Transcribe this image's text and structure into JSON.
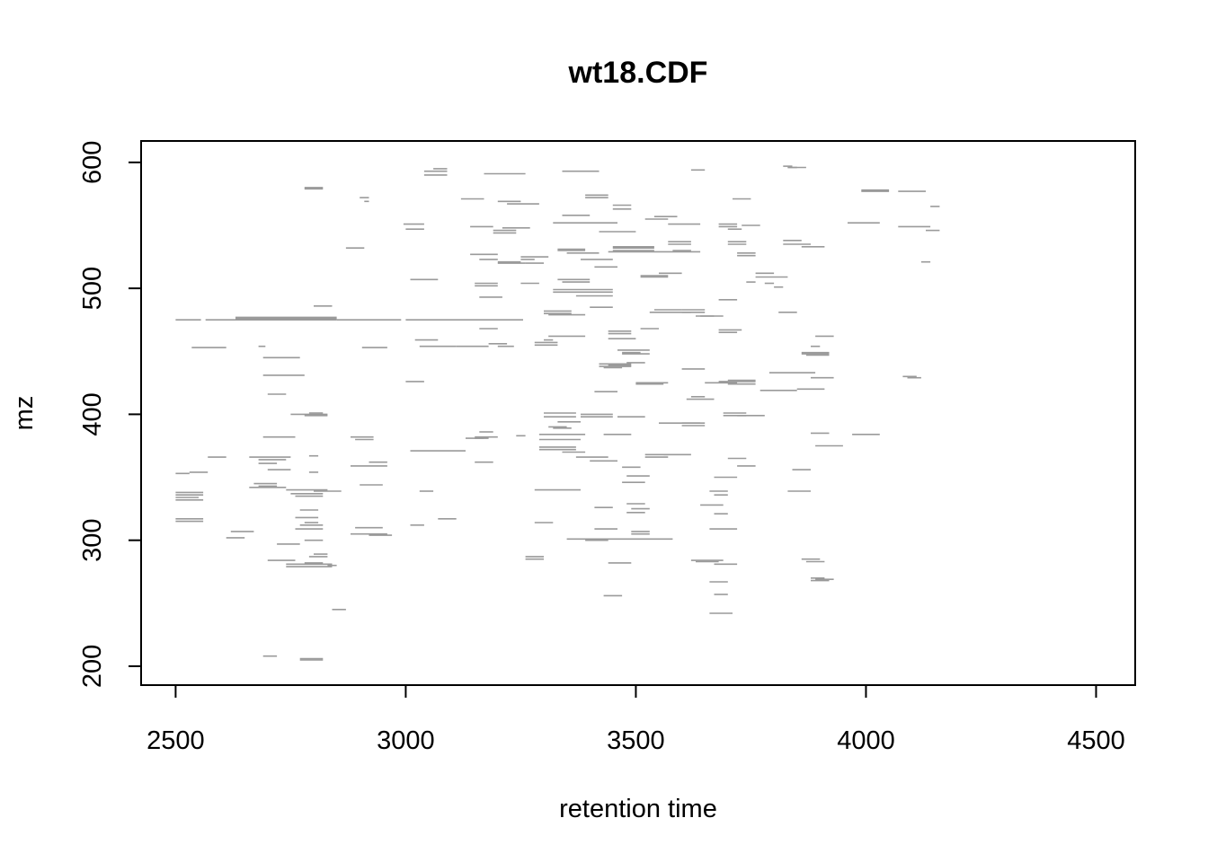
{
  "chart_data": {
    "type": "segments",
    "title": "wt18.CDF",
    "xlabel": "retention time",
    "ylabel": "mz",
    "xlim": [
      2425,
      4585
    ],
    "ylim": [
      185,
      617
    ],
    "xticks": [
      "2500",
      "3000",
      "3500",
      "4000",
      "4500"
    ],
    "yticks": [
      "200",
      "300",
      "400",
      "500",
      "600"
    ],
    "grid": false,
    "legend": "none",
    "segment_color": "#9a9a9a",
    "segments": [
      [
        2500,
        2555,
        475
      ],
      [
        2565,
        2850,
        475
      ],
      [
        2850,
        2990,
        475
      ],
      [
        3000,
        3255,
        475
      ],
      [
        2630,
        2850,
        476
      ],
      [
        2630,
        2850,
        477
      ],
      [
        2535,
        2610,
        453
      ],
      [
        2680,
        2695,
        454
      ],
      [
        2905,
        2960,
        453
      ],
      [
        3020,
        3070,
        459
      ],
      [
        3030,
        3110,
        454
      ],
      [
        3110,
        3180,
        454
      ],
      [
        3200,
        3235,
        454
      ],
      [
        3160,
        3200,
        468
      ],
      [
        2690,
        2770,
        445
      ],
      [
        2690,
        2780,
        431
      ],
      [
        2700,
        2740,
        416
      ],
      [
        3000,
        3040,
        426
      ],
      [
        2800,
        2840,
        486
      ],
      [
        3010,
        3070,
        507
      ],
      [
        2870,
        2910,
        532
      ],
      [
        3040,
        3090,
        593
      ],
      [
        3040,
        3090,
        590
      ],
      [
        3060,
        3090,
        595
      ],
      [
        2780,
        2820,
        580
      ],
      [
        2780,
        2820,
        579
      ],
      [
        2900,
        2920,
        572
      ],
      [
        2910,
        2920,
        569
      ],
      [
        3120,
        3170,
        571
      ],
      [
        3170,
        3260,
        591
      ],
      [
        2995,
        3040,
        551
      ],
      [
        3000,
        3040,
        547
      ],
      [
        3140,
        3190,
        549
      ],
      [
        3140,
        3200,
        527
      ],
      [
        3160,
        3200,
        523
      ],
      [
        3190,
        3240,
        546
      ],
      [
        3190,
        3240,
        544
      ],
      [
        3200,
        3250,
        569
      ],
      [
        3220,
        3290,
        567
      ],
      [
        3200,
        3260,
        520
      ],
      [
        3200,
        3250,
        521
      ],
      [
        3250,
        3310,
        525
      ],
      [
        3260,
        3300,
        520
      ],
      [
        3150,
        3200,
        502
      ],
      [
        3150,
        3200,
        504
      ],
      [
        3160,
        3210,
        493
      ],
      [
        3250,
        3290,
        504
      ],
      [
        3320,
        3460,
        552
      ],
      [
        3340,
        3400,
        558
      ],
      [
        3390,
        3440,
        574
      ],
      [
        3390,
        3440,
        572
      ],
      [
        3420,
        3500,
        545
      ],
      [
        3450,
        3490,
        566
      ],
      [
        3450,
        3490,
        563
      ],
      [
        3330,
        3390,
        531
      ],
      [
        3330,
        3390,
        530
      ],
      [
        3380,
        3450,
        523
      ],
      [
        3350,
        3420,
        528
      ],
      [
        3410,
        3460,
        517
      ],
      [
        3450,
        3540,
        533
      ],
      [
        3450,
        3540,
        532
      ],
      [
        3450,
        3540,
        530
      ],
      [
        3440,
        3640,
        529
      ],
      [
        3330,
        3400,
        507
      ],
      [
        3340,
        3400,
        505
      ],
      [
        3320,
        3450,
        497
      ],
      [
        3320,
        3450,
        499
      ],
      [
        3370,
        3450,
        494
      ],
      [
        3300,
        3360,
        482
      ],
      [
        3300,
        3360,
        480
      ],
      [
        3310,
        3390,
        479
      ],
      [
        3340,
        3420,
        593
      ],
      [
        3510,
        3570,
        509
      ],
      [
        3510,
        3570,
        510
      ],
      [
        3550,
        3600,
        512
      ],
      [
        3540,
        3590,
        557
      ],
      [
        3520,
        3570,
        555
      ],
      [
        3570,
        3640,
        551
      ],
      [
        3620,
        3650,
        594
      ],
      [
        3570,
        3620,
        537
      ],
      [
        3570,
        3620,
        535
      ],
      [
        3580,
        3620,
        530
      ],
      [
        3540,
        3600,
        483
      ],
      [
        3530,
        3620,
        481
      ],
      [
        3600,
        3650,
        483
      ],
      [
        3600,
        3650,
        481
      ],
      [
        3630,
        3670,
        478
      ],
      [
        3640,
        3690,
        478
      ],
      [
        3680,
        3720,
        551
      ],
      [
        3680,
        3720,
        549
      ],
      [
        3700,
        3730,
        547
      ],
      [
        3710,
        3750,
        571
      ],
      [
        3730,
        3770,
        550
      ],
      [
        3700,
        3740,
        537
      ],
      [
        3700,
        3740,
        535
      ],
      [
        3720,
        3760,
        528
      ],
      [
        3720,
        3760,
        526
      ],
      [
        3760,
        3800,
        512
      ],
      [
        3760,
        3830,
        509
      ],
      [
        3740,
        3760,
        505
      ],
      [
        3800,
        3820,
        501
      ],
      [
        3780,
        3800,
        504
      ],
      [
        3680,
        3720,
        491
      ],
      [
        3810,
        3850,
        481
      ],
      [
        3820,
        3840,
        597
      ],
      [
        3830,
        3850,
        596
      ],
      [
        3820,
        3860,
        538
      ],
      [
        3820,
        3880,
        535
      ],
      [
        3860,
        3910,
        533
      ],
      [
        3680,
        3730,
        467
      ],
      [
        3680,
        3720,
        465
      ],
      [
        3440,
        3490,
        466
      ],
      [
        3440,
        3490,
        464
      ],
      [
        3440,
        3500,
        460
      ],
      [
        3460,
        3530,
        451
      ],
      [
        3470,
        3530,
        448
      ],
      [
        3480,
        3520,
        441
      ],
      [
        3420,
        3490,
        440
      ],
      [
        3420,
        3490,
        438
      ],
      [
        3500,
        3570,
        425
      ],
      [
        3500,
        3560,
        424
      ],
      [
        3410,
        3460,
        418
      ],
      [
        3460,
        3520,
        398
      ],
      [
        3600,
        3650,
        436
      ],
      [
        3620,
        3650,
        414
      ],
      [
        3610,
        3670,
        412
      ],
      [
        3600,
        3650,
        393
      ],
      [
        3600,
        3650,
        391
      ],
      [
        3650,
        3720,
        425
      ],
      [
        3680,
        3760,
        426
      ],
      [
        3700,
        3760,
        427
      ],
      [
        3700,
        3760,
        424
      ],
      [
        3770,
        3850,
        419
      ],
      [
        3790,
        3890,
        433
      ],
      [
        3850,
        3910,
        420
      ],
      [
        3690,
        3740,
        401
      ],
      [
        3690,
        3740,
        399
      ],
      [
        3720,
        3780,
        399
      ],
      [
        3860,
        3920,
        449
      ],
      [
        3860,
        3920,
        448
      ],
      [
        3870,
        3920,
        447
      ],
      [
        3880,
        3900,
        454
      ],
      [
        3890,
        3930,
        462
      ],
      [
        3880,
        3930,
        429
      ],
      [
        3880,
        3920,
        385
      ],
      [
        3890,
        3950,
        375
      ],
      [
        3840,
        3880,
        356
      ],
      [
        3830,
        3880,
        339
      ],
      [
        3700,
        3740,
        365
      ],
      [
        3720,
        3760,
        359
      ],
      [
        3670,
        3720,
        350
      ],
      [
        3660,
        3700,
        339
      ],
      [
        3670,
        3700,
        336
      ],
      [
        3640,
        3690,
        328
      ],
      [
        3670,
        3700,
        321
      ],
      [
        3660,
        3720,
        309
      ],
      [
        3620,
        3690,
        284
      ],
      [
        3630,
        3680,
        283
      ],
      [
        3670,
        3720,
        281
      ],
      [
        3660,
        3700,
        267
      ],
      [
        3670,
        3700,
        257
      ],
      [
        3660,
        3710,
        242
      ],
      [
        3860,
        3900,
        285
      ],
      [
        3870,
        3910,
        283
      ],
      [
        3880,
        3910,
        270
      ],
      [
        3890,
        3930,
        269
      ],
      [
        3880,
        3920,
        268
      ],
      [
        3830,
        3870,
        596
      ],
      [
        3970,
        4030,
        384
      ],
      [
        3990,
        4050,
        578
      ],
      [
        3990,
        4050,
        577
      ],
      [
        3960,
        4030,
        552
      ],
      [
        4070,
        4130,
        577
      ],
      [
        4070,
        4140,
        549
      ],
      [
        4140,
        4160,
        565
      ],
      [
        4130,
        4160,
        546
      ],
      [
        4120,
        4140,
        521
      ],
      [
        4080,
        4110,
        430
      ],
      [
        4090,
        4120,
        429
      ],
      [
        3300,
        3370,
        401
      ],
      [
        3300,
        3370,
        398
      ],
      [
        3330,
        3380,
        394
      ],
      [
        3380,
        3450,
        400
      ],
      [
        3380,
        3450,
        398
      ],
      [
        3310,
        3350,
        390
      ],
      [
        3320,
        3360,
        389
      ],
      [
        3290,
        3390,
        384
      ],
      [
        3290,
        3380,
        380
      ],
      [
        3290,
        3370,
        374
      ],
      [
        3290,
        3370,
        372
      ],
      [
        3340,
        3390,
        370
      ],
      [
        3370,
        3440,
        366
      ],
      [
        3280,
        3380,
        340
      ],
      [
        3280,
        3320,
        314
      ],
      [
        3260,
        3300,
        287
      ],
      [
        3260,
        3300,
        285
      ],
      [
        3350,
        3580,
        301
      ],
      [
        3390,
        3440,
        300
      ],
      [
        3410,
        3450,
        326
      ],
      [
        3410,
        3460,
        309
      ],
      [
        3470,
        3510,
        358
      ],
      [
        3480,
        3530,
        351
      ],
      [
        3470,
        3520,
        346
      ],
      [
        3480,
        3520,
        329
      ],
      [
        3490,
        3530,
        325
      ],
      [
        3480,
        3520,
        322
      ],
      [
        3490,
        3530,
        307
      ],
      [
        3490,
        3530,
        305
      ],
      [
        3440,
        3490,
        282
      ],
      [
        3430,
        3470,
        256
      ],
      [
        3520,
        3570,
        368
      ],
      [
        3520,
        3570,
        366
      ],
      [
        3550,
        3640,
        393
      ],
      [
        3430,
        3490,
        384
      ],
      [
        3440,
        3490,
        439
      ],
      [
        3430,
        3470,
        437
      ],
      [
        3470,
        3510,
        449
      ],
      [
        3510,
        3550,
        468
      ],
      [
        3310,
        3390,
        462
      ],
      [
        3280,
        3330,
        457
      ],
      [
        3280,
        3330,
        455
      ],
      [
        3400,
        3450,
        485
      ],
      [
        3400,
        3460,
        363
      ],
      [
        3560,
        3620,
        368
      ],
      [
        3030,
        3060,
        339
      ],
      [
        3010,
        3040,
        312
      ],
      [
        3070,
        3110,
        317
      ],
      [
        3010,
        3130,
        371
      ],
      [
        2900,
        2950,
        344
      ],
      [
        2880,
        2960,
        359
      ],
      [
        2920,
        2960,
        362
      ],
      [
        2890,
        2930,
        380
      ],
      [
        2880,
        2930,
        382
      ],
      [
        2880,
        2960,
        305
      ],
      [
        2920,
        2970,
        304
      ],
      [
        2890,
        2950,
        310
      ],
      [
        2620,
        2670,
        307
      ],
      [
        2610,
        2650,
        302
      ],
      [
        2500,
        2560,
        338
      ],
      [
        2500,
        2560,
        336
      ],
      [
        2500,
        2560,
        332
      ],
      [
        2500,
        2550,
        334
      ],
      [
        2500,
        2560,
        317
      ],
      [
        2500,
        2560,
        315
      ],
      [
        2500,
        2530,
        353
      ],
      [
        2530,
        2570,
        354
      ],
      [
        2570,
        2610,
        366
      ],
      [
        2660,
        2750,
        366
      ],
      [
        2680,
        2740,
        364
      ],
      [
        2680,
        2720,
        361
      ],
      [
        2670,
        2720,
        345
      ],
      [
        2660,
        2740,
        342
      ],
      [
        2680,
        2720,
        343
      ],
      [
        2690,
        2760,
        382
      ],
      [
        2700,
        2750,
        356
      ],
      [
        2740,
        2830,
        340
      ],
      [
        2750,
        2820,
        337
      ],
      [
        2760,
        2820,
        335
      ],
      [
        2760,
        2810,
        318
      ],
      [
        2780,
        2810,
        314
      ],
      [
        2770,
        2820,
        312
      ],
      [
        2760,
        2820,
        309
      ],
      [
        2770,
        2810,
        324
      ],
      [
        2720,
        2770,
        297
      ],
      [
        2780,
        2820,
        300
      ],
      [
        2700,
        2760,
        284
      ],
      [
        2740,
        2840,
        281
      ],
      [
        2740,
        2840,
        279
      ],
      [
        2780,
        2820,
        282
      ],
      [
        2800,
        2830,
        289
      ],
      [
        2790,
        2830,
        287
      ],
      [
        2830,
        2850,
        280
      ],
      [
        2840,
        2870,
        245
      ],
      [
        2690,
        2720,
        208
      ],
      [
        2770,
        2820,
        206
      ],
      [
        2770,
        2820,
        205
      ],
      [
        2790,
        2820,
        401
      ],
      [
        2780,
        2830,
        399
      ],
      [
        2750,
        2830,
        400
      ],
      [
        2790,
        2810,
        367
      ],
      [
        2790,
        2810,
        354
      ],
      [
        2800,
        2860,
        339
      ],
      [
        3150,
        3200,
        382
      ],
      [
        3160,
        3190,
        386
      ],
      [
        3150,
        3190,
        362
      ],
      [
        3150,
        3180,
        381
      ],
      [
        3240,
        3260,
        383
      ],
      [
        3130,
        3170,
        381
      ],
      [
        3210,
        3270,
        548
      ],
      [
        3300,
        3320,
        459
      ],
      [
        3180,
        3220,
        456
      ],
      [
        3250,
        3280,
        523
      ]
    ]
  }
}
